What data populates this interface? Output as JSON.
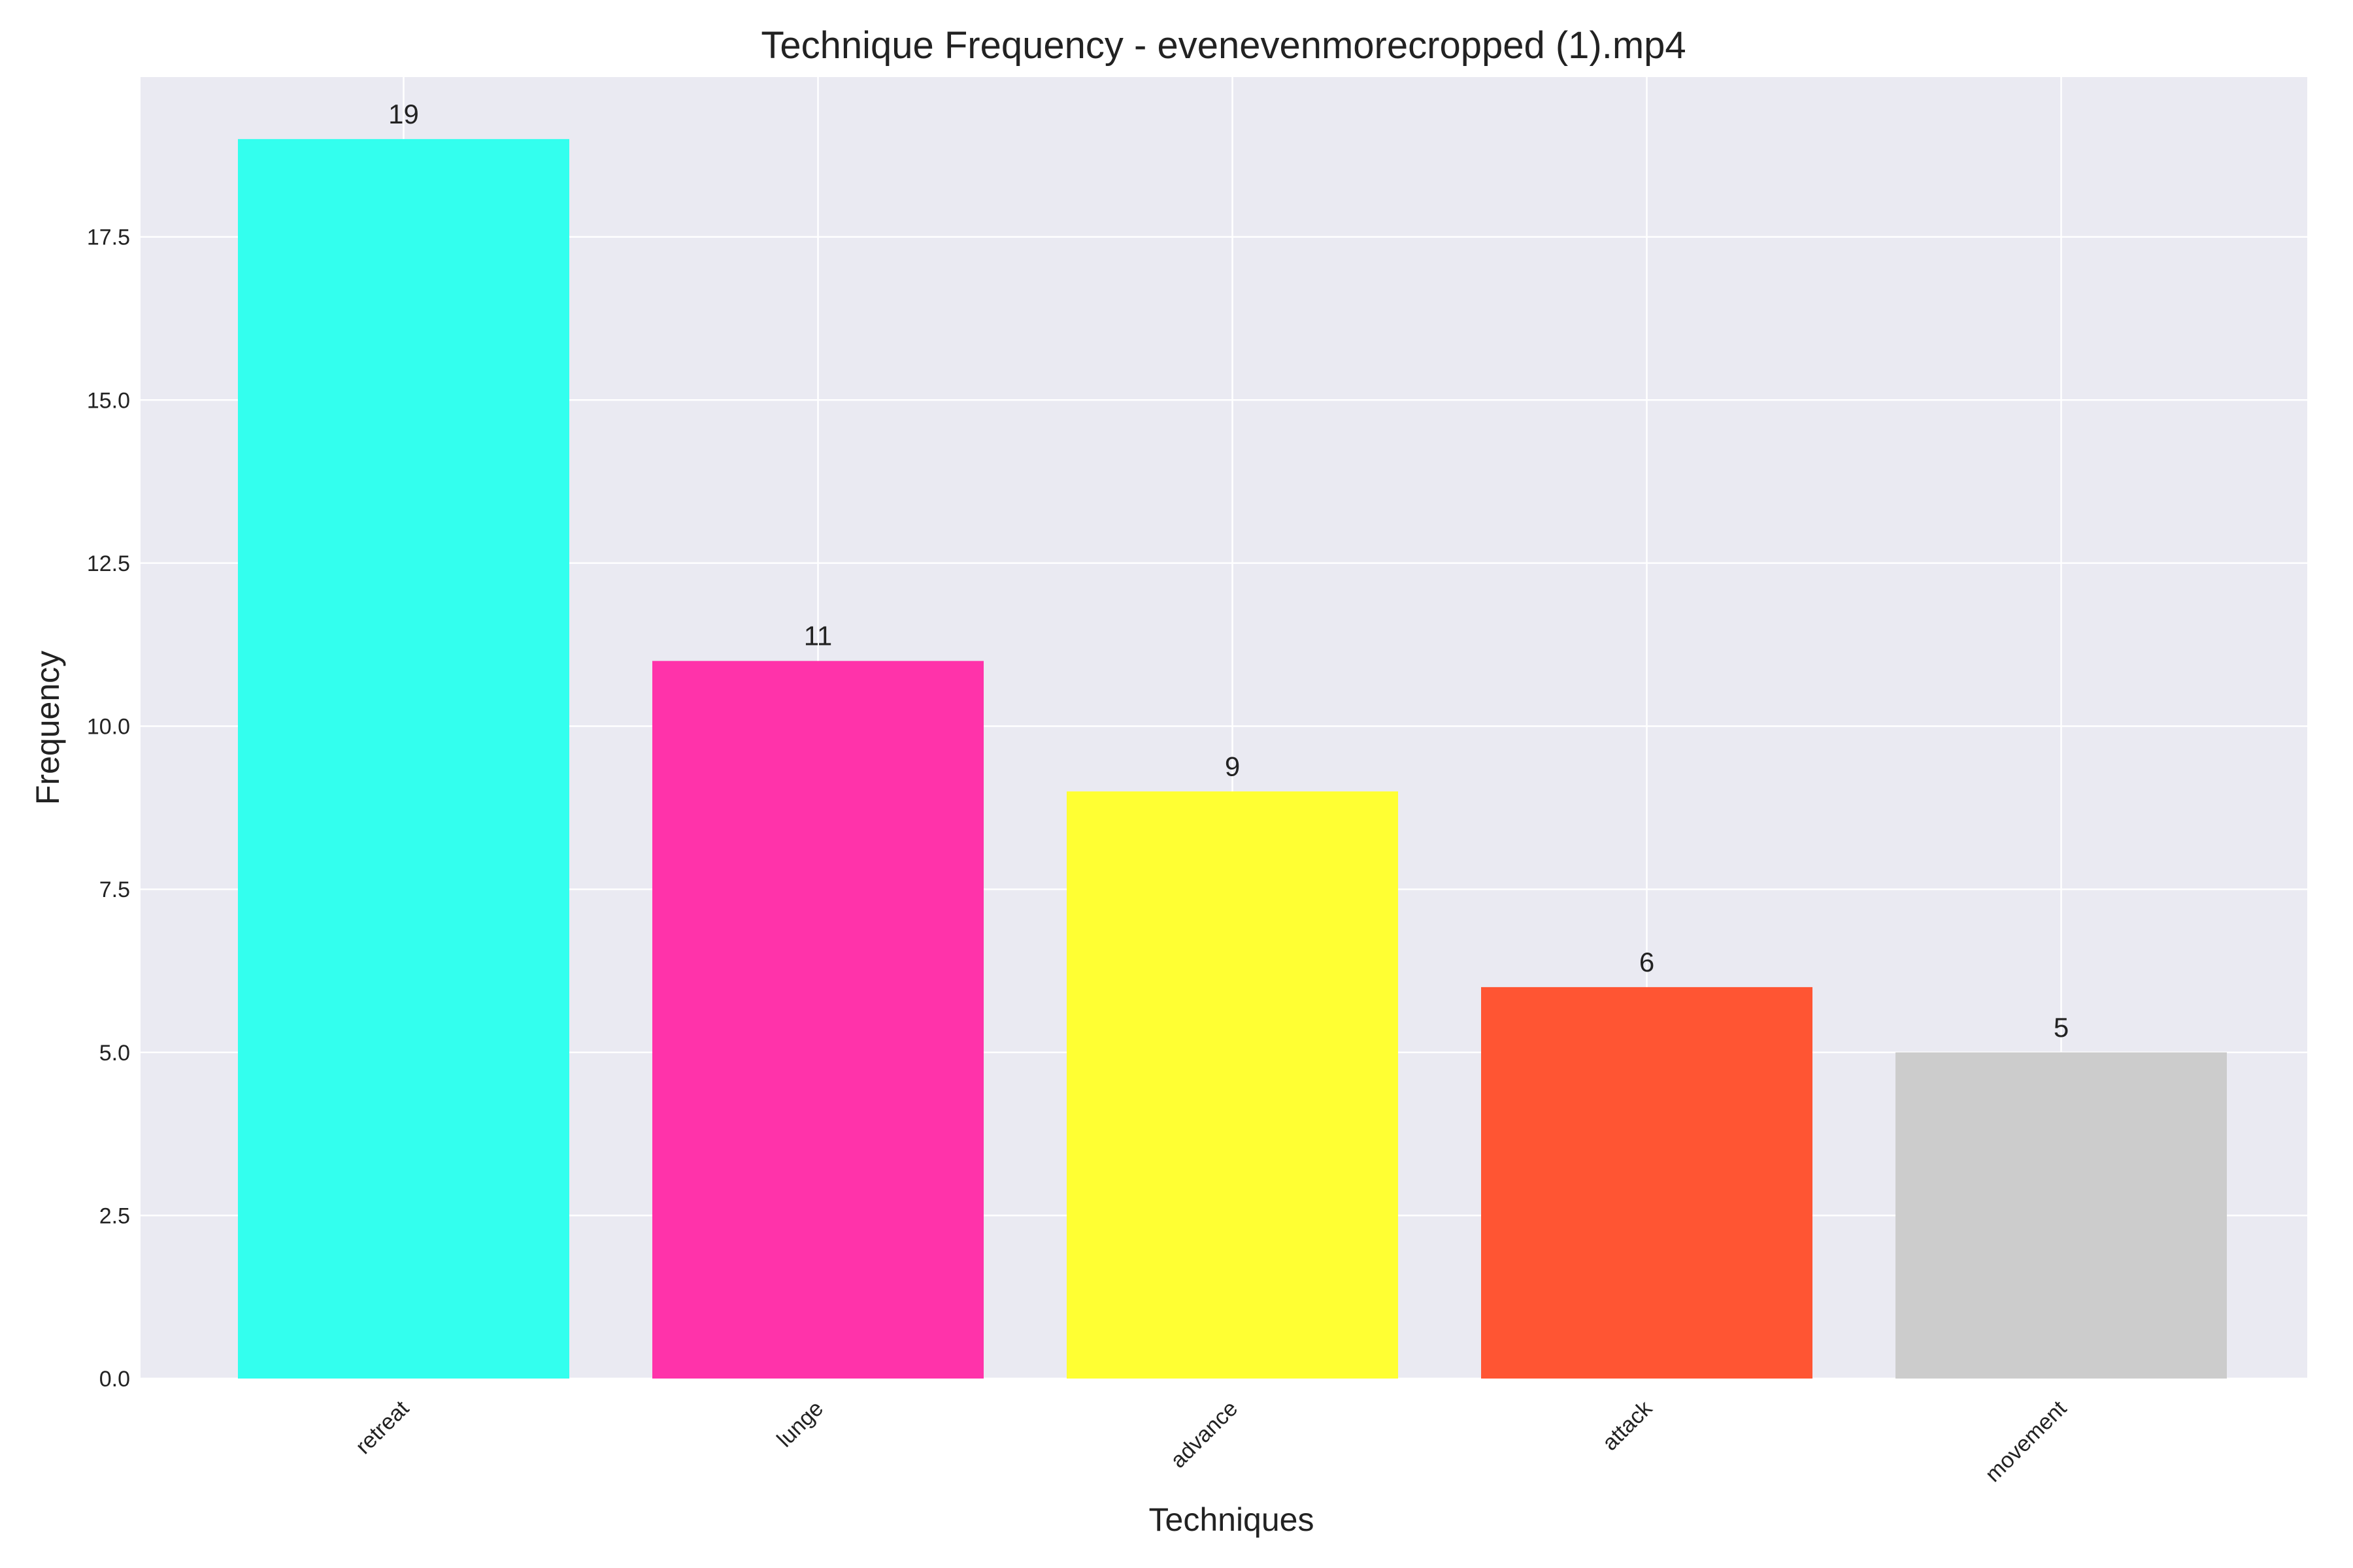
{
  "chart_data": {
    "type": "bar",
    "title": "Technique Frequency - evenevenmorecropped (1).mp4",
    "xlabel": "Techniques",
    "ylabel": "Frequency",
    "categories": [
      "retreat",
      "lunge",
      "advance",
      "attack",
      "movement"
    ],
    "values": [
      19,
      11,
      9,
      6,
      5
    ],
    "colors": [
      "#33ffee",
      "#ff33aa",
      "#ffff33",
      "#ff5533",
      "#cccccc"
    ],
    "ylim": [
      0,
      19.95
    ],
    "yticks": [
      0.0,
      2.5,
      5.0,
      7.5,
      10.0,
      12.5,
      15.0,
      17.5
    ],
    "ytick_labels": [
      "0.0",
      "2.5",
      "5.0",
      "7.5",
      "10.0",
      "12.5",
      "15.0",
      "17.5"
    ],
    "data_labels": [
      "19",
      "11",
      "9",
      "6",
      "5"
    ],
    "grid": true,
    "background": "#eaeaf2"
  }
}
